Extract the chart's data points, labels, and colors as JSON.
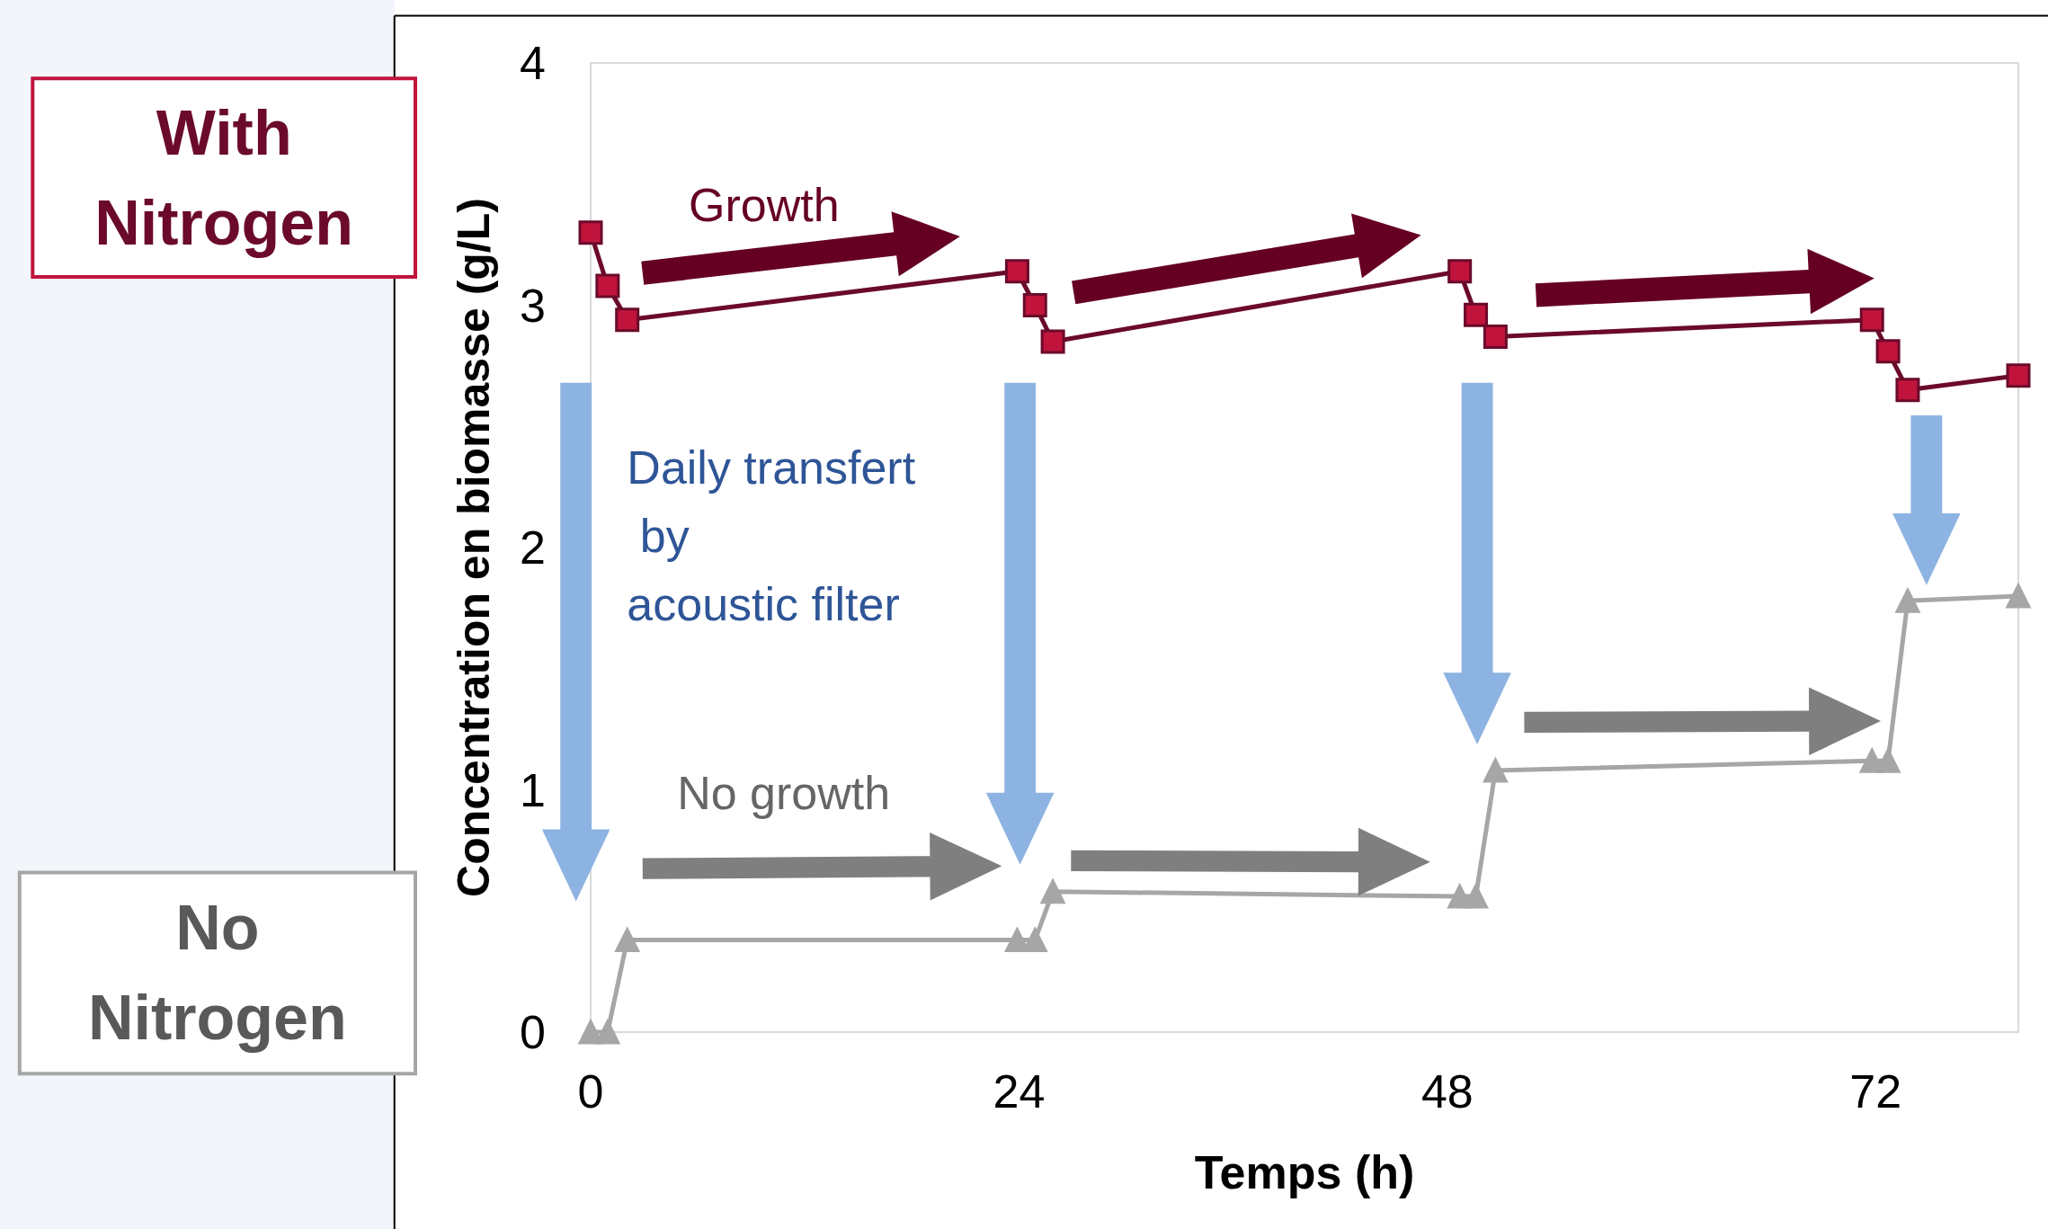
{
  "chart_data": {
    "type": "line",
    "xlabel": "Temps (h)",
    "ylabel": "Concentration en biomasse (g/L)",
    "xlim": [
      0,
      80
    ],
    "xticks": [
      0,
      24,
      48,
      72
    ],
    "ylim": [
      0,
      4
    ],
    "yticks": [
      0,
      1,
      2,
      3,
      4
    ],
    "grid": false,
    "legend": false,
    "series": [
      {
        "name": "With Nitrogen",
        "color": "#6b0a2a",
        "marker": "square",
        "x": [
          0,
          0.95,
          2.05,
          23.9,
          24.9,
          25.9,
          48.7,
          49.6,
          50.7,
          71.8,
          72.7,
          73.8,
          80
        ],
        "values": [
          3.3,
          3.08,
          2.94,
          3.14,
          3.0,
          2.85,
          3.14,
          2.96,
          2.87,
          2.94,
          2.81,
          2.65,
          2.71
        ]
      },
      {
        "name": "No Nitrogen",
        "color": "#a6a6a6",
        "marker": "triangle",
        "x": [
          0,
          0.95,
          2.05,
          23.9,
          24.9,
          25.9,
          48.7,
          49.6,
          50.7,
          71.8,
          72.7,
          73.8,
          80
        ],
        "values": [
          0,
          0,
          0.38,
          0.38,
          0.38,
          0.58,
          0.56,
          0.56,
          1.08,
          1.12,
          1.12,
          1.78,
          1.8
        ]
      }
    ],
    "annotations": [
      "Growth",
      "No growth",
      "Daily transfert\n by\nacoustic filter"
    ]
  }
}
